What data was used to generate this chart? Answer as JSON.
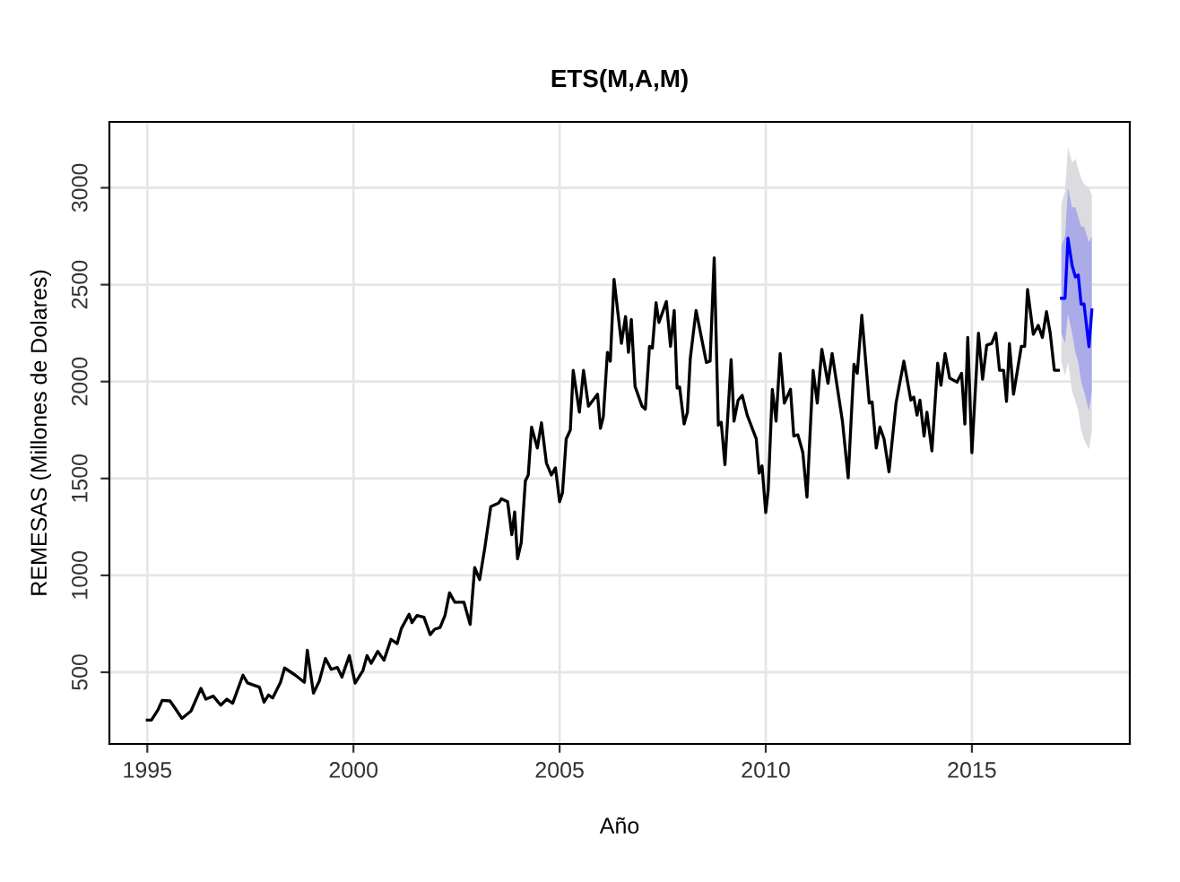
{
  "chart_data": {
    "type": "line",
    "title": "ETS(M,A,M)",
    "xlabel": "Año",
    "ylabel": "REMESAS (Millones de Dolares)",
    "xlim": [
      1994.08,
      2018.83
    ],
    "ylim": [
      130,
      3340
    ],
    "xticks": [
      1995,
      2000,
      2005,
      2010,
      2015
    ],
    "yticks": [
      500,
      1000,
      1500,
      2000,
      2500,
      3000
    ],
    "grid": true,
    "legend": false,
    "series": [
      {
        "color": "#dcdce0",
        "x": [
          2017.17,
          2017.26,
          2017.33,
          2017.43,
          2017.51,
          2017.58,
          2017.65,
          2017.72,
          2017.84,
          2017.91
        ],
        "values": [
          null,
          null,
          null,
          null,
          null,
          null,
          null,
          null,
          null,
          null
        ],
        "lower": [
          2100,
          2030,
          2100,
          1950,
          1900,
          1850,
          1750,
          1700,
          1650,
          1750
        ],
        "upper": [
          2920,
          2980,
          3210,
          3130,
          3150,
          3100,
          3050,
          3020,
          3000,
          2960
        ]
      },
      {
        "color": "#0000ff",
        "x": [
          2017.17,
          2017.26,
          2017.33,
          2017.43,
          2017.51,
          2017.58,
          2017.65,
          2017.72,
          2017.84,
          2017.91
        ],
        "values": [
          2430,
          2430,
          2740,
          2600,
          2540,
          2550,
          2400,
          2400,
          2180,
          2370
        ],
        "lower": [
          2250,
          2200,
          2350,
          2250,
          2150,
          2100,
          2000,
          1950,
          1850,
          1950
        ],
        "upper": [
          2700,
          2750,
          3000,
          2900,
          2900,
          2850,
          2800,
          2800,
          2720,
          2750
        ]
      },
      {
        "color": "#000000",
        "x": [
          1995.0,
          1995.1,
          1995.26,
          1995.36,
          1995.55,
          1995.62,
          1995.84,
          1996.06,
          1996.3,
          1996.42,
          1996.6,
          1996.78,
          1996.93,
          1997.07,
          1997.32,
          1997.43,
          1997.72,
          1997.83,
          1997.94,
          1998.04,
          1998.23,
          1998.33,
          1998.59,
          1998.81,
          1998.88,
          1999.03,
          1999.17,
          1999.32,
          1999.46,
          1999.61,
          1999.72,
          1999.9,
          2000.04,
          2000.23,
          2000.33,
          2000.43,
          2000.59,
          2000.74,
          2000.91,
          2001.06,
          2001.16,
          2001.35,
          2001.42,
          2001.54,
          2001.71,
          2001.86,
          2001.97,
          2002.1,
          2002.22,
          2002.33,
          2002.46,
          2002.68,
          2002.83,
          2002.94,
          2003.06,
          2003.19,
          2003.33,
          2003.52,
          2003.59,
          2003.74,
          2003.84,
          2003.91,
          2003.98,
          2004.07,
          2004.17,
          2004.24,
          2004.32,
          2004.46,
          2004.56,
          2004.68,
          2004.8,
          2004.9,
          2005.0,
          2005.07,
          2005.16,
          2005.26,
          2005.33,
          2005.48,
          2005.58,
          2005.7,
          2005.92,
          2005.99,
          2006.06,
          2006.16,
          2006.23,
          2006.32,
          2006.5,
          2006.6,
          2006.67,
          2006.74,
          2006.83,
          2007.0,
          2007.08,
          2007.18,
          2007.25,
          2007.34,
          2007.41,
          2007.59,
          2007.69,
          2007.78,
          2007.85,
          2007.91,
          2008.02,
          2008.1,
          2008.17,
          2008.31,
          2008.56,
          2008.65,
          2008.75,
          2008.85,
          2008.92,
          2009.01,
          2009.16,
          2009.23,
          2009.33,
          2009.43,
          2009.55,
          2009.77,
          2009.84,
          2009.91,
          2010.0,
          2010.06,
          2010.16,
          2010.25,
          2010.35,
          2010.45,
          2010.6,
          2010.68,
          2010.78,
          2010.9,
          2011.0,
          2011.15,
          2011.25,
          2011.36,
          2011.51,
          2011.61,
          2011.86,
          2012.0,
          2012.14,
          2012.22,
          2012.33,
          2012.51,
          2012.58,
          2012.68,
          2012.77,
          2012.87,
          2012.99,
          2013.16,
          2013.35,
          2013.52,
          2013.59,
          2013.67,
          2013.74,
          2013.84,
          2013.91,
          2014.03,
          2014.17,
          2014.25,
          2014.35,
          2014.46,
          2014.64,
          2014.75,
          2014.83,
          2014.9,
          2015.0,
          2015.16,
          2015.26,
          2015.36,
          2015.48,
          2015.58,
          2015.67,
          2015.77,
          2015.84,
          2015.91,
          2016.01,
          2016.2,
          2016.28,
          2016.35,
          2016.49,
          2016.61,
          2016.71,
          2016.81,
          2016.9,
          2017.0,
          2017.1
        ],
        "values": [
          253,
          253,
          306,
          355,
          352,
          331,
          262,
          300,
          417,
          361,
          377,
          330,
          361,
          340,
          485,
          445,
          423,
          346,
          383,
          367,
          448,
          522,
          485,
          448,
          614,
          392,
          454,
          571,
          515,
          525,
          475,
          586,
          444,
          509,
          586,
          546,
          608,
          562,
          670,
          648,
          725,
          799,
          756,
          793,
          784,
          694,
          722,
          731,
          793,
          910,
          861,
          861,
          747,
          1040,
          978,
          1148,
          1355,
          1373,
          1395,
          1380,
          1210,
          1327,
          1086,
          1170,
          1488,
          1518,
          1765,
          1657,
          1787,
          1580,
          1518,
          1555,
          1380,
          1426,
          1704,
          1750,
          2058,
          1842,
          2058,
          1873,
          1935,
          1759,
          1818,
          2151,
          2105,
          2528,
          2197,
          2336,
          2151,
          2321,
          1975,
          1873,
          1858,
          2182,
          2173,
          2407,
          2305,
          2413,
          2182,
          2367,
          1966,
          1972,
          1781,
          1842,
          2120,
          2367,
          2099,
          2105,
          2639,
          1775,
          1790,
          1571,
          2114,
          1796,
          1904,
          1929,
          1827,
          1704,
          1528,
          1565,
          1324,
          1441,
          1960,
          1796,
          2145,
          1889,
          1960,
          1719,
          1725,
          1633,
          1404,
          2058,
          1889,
          2167,
          1991,
          2145,
          1796,
          1503,
          2089,
          2043,
          2342,
          1889,
          1895,
          1657,
          1765,
          1704,
          1534,
          1889,
          2105,
          1904,
          1920,
          1827,
          1904,
          1719,
          1842,
          1642,
          2095,
          1981,
          2145,
          2018,
          1997,
          2043,
          1781,
          2228,
          1633,
          2250,
          2012,
          2188,
          2197,
          2250,
          2058,
          2058,
          1898,
          2197,
          1935,
          2182,
          2182,
          2475,
          2244,
          2290,
          2228,
          2361,
          2250,
          2058,
          2058
        ]
      }
    ]
  }
}
